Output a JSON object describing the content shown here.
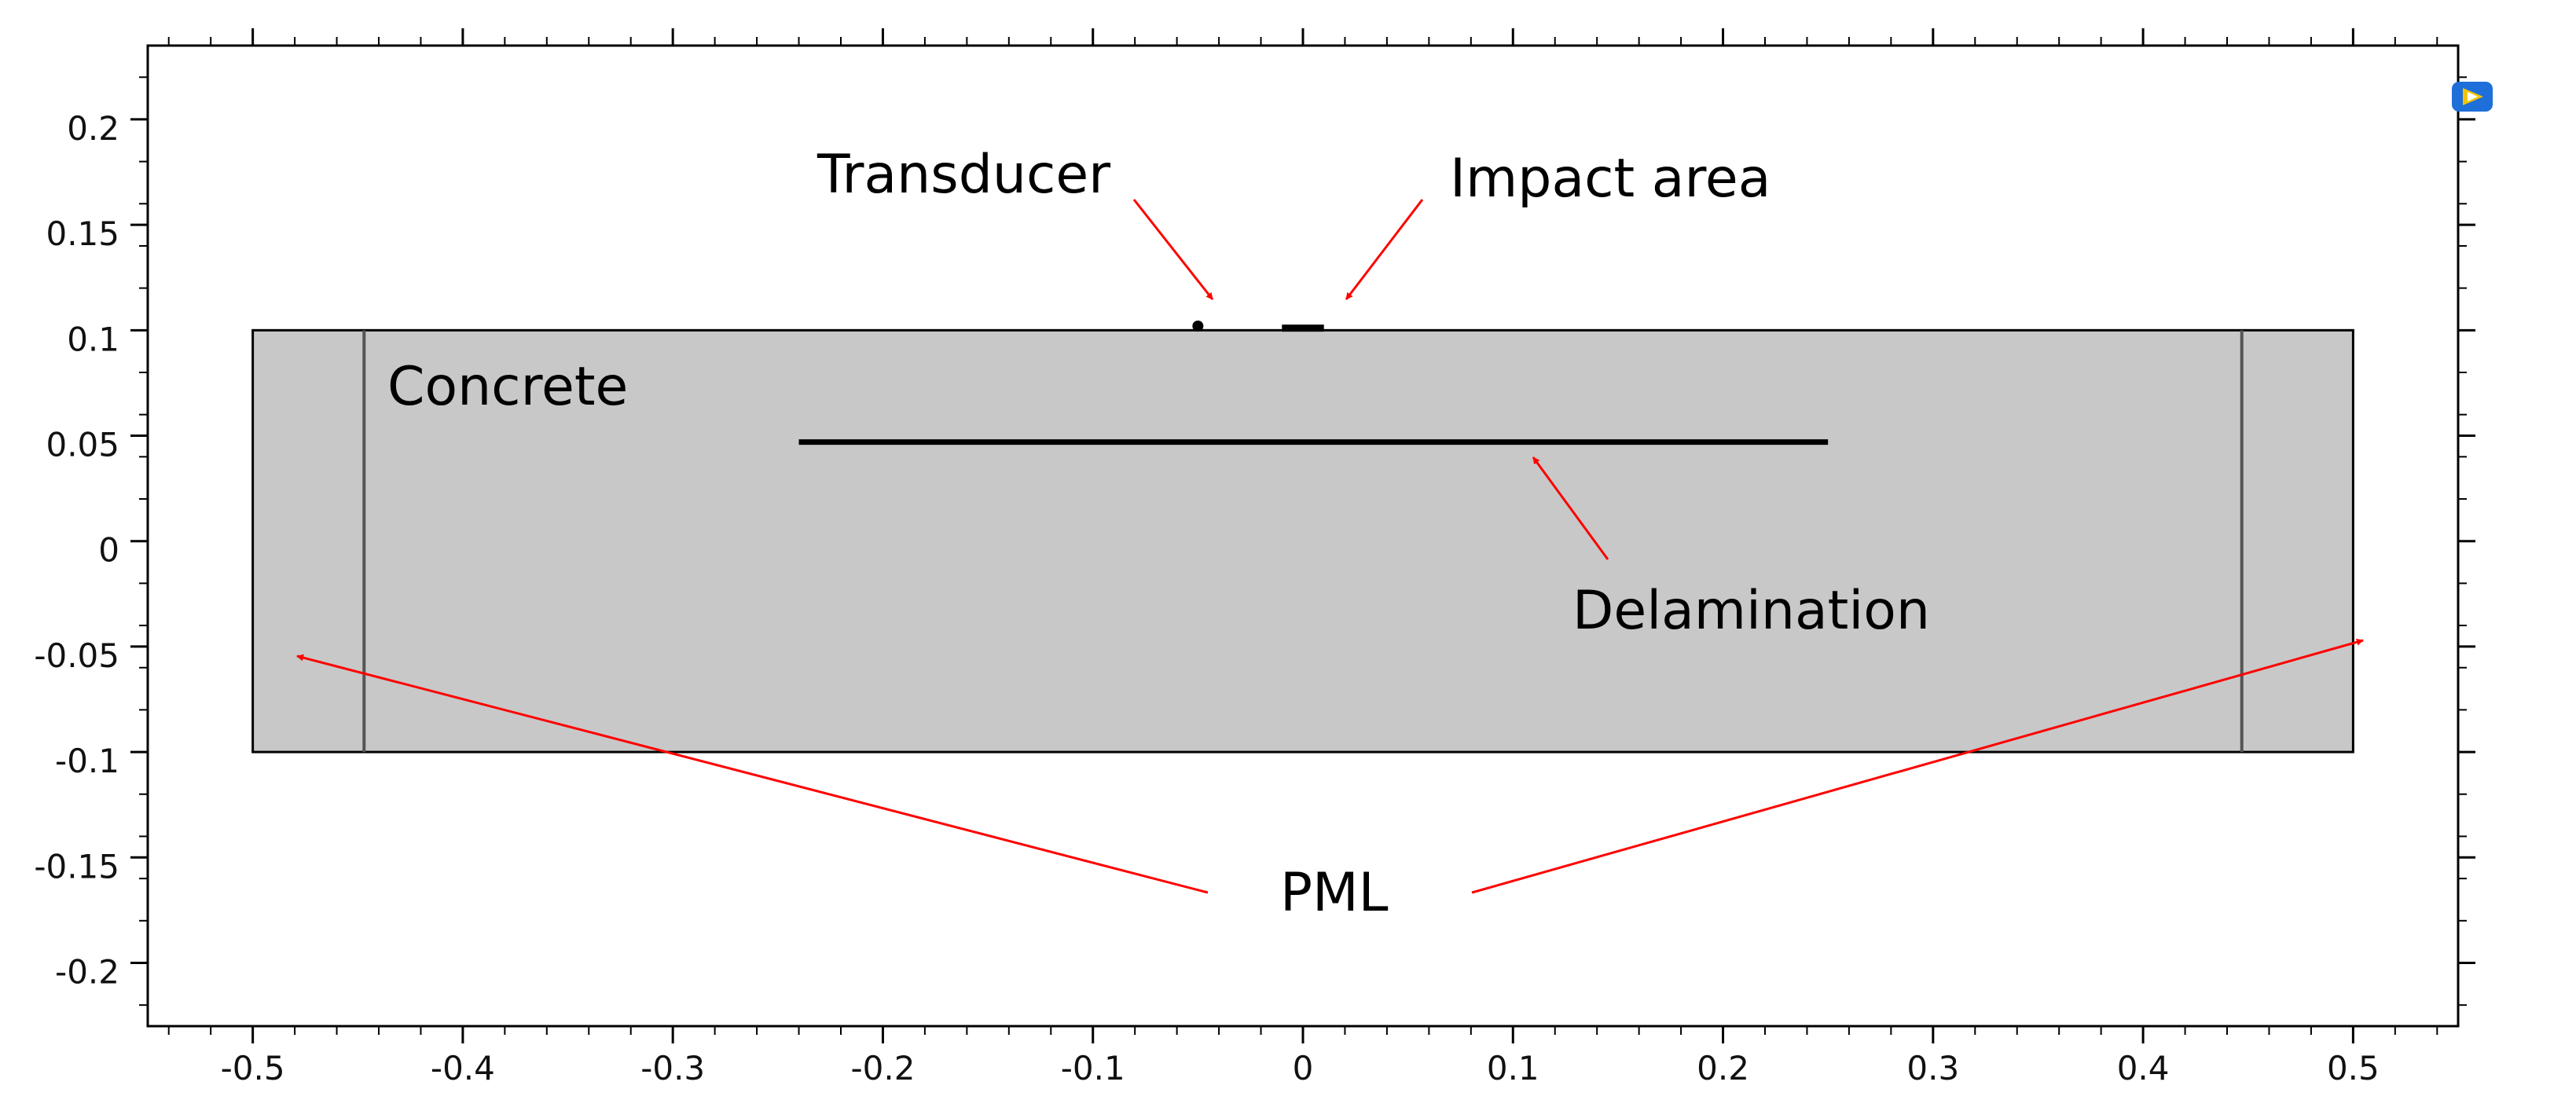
{
  "view": {
    "x_range": [
      -0.55,
      0.55
    ],
    "y_range": [
      -0.23,
      0.235
    ],
    "x_ticks": [
      -0.5,
      -0.4,
      -0.3,
      -0.2,
      -0.1,
      0,
      0.1,
      0.2,
      0.3,
      0.4,
      0.5
    ],
    "x_tick_labels": [
      "-0.5",
      "-0.4",
      "-0.3",
      "-0.2",
      "-0.1",
      "0",
      "0.1",
      "0.2",
      "0.3",
      "0.4",
      "0.5"
    ],
    "y_ticks": [
      0.2,
      0.15,
      0.1,
      0.05,
      0,
      -0.05,
      -0.1,
      -0.15,
      -0.2
    ],
    "y_tick_labels": [
      "0.2",
      "0.15",
      "0.1",
      "0.05",
      "0",
      "-0.05",
      "-0.1",
      "-0.15",
      "-0.2"
    ],
    "minor_tick_step": 0.02
  },
  "geometry": {
    "concrete_block": {
      "x": [
        -0.5,
        0.5
      ],
      "y": [
        -0.1,
        0.1
      ]
    },
    "pml_boundaries_x": [
      -0.447,
      0.447
    ],
    "delamination": {
      "x": [
        -0.24,
        0.25
      ],
      "y": 0.047
    },
    "transducer_point": {
      "x": -0.05,
      "y": 0.102
    },
    "impact_area": {
      "x": [
        -0.01,
        0.01
      ],
      "y": 0.101
    }
  },
  "annotations": {
    "transducer": "Transducer",
    "impact_area": "Impact area",
    "concrete": "Concrete",
    "delamination": "Delamination",
    "pml": "PML"
  },
  "colors": {
    "concrete_fill": "#c8c8c8",
    "arrow": "#ff0000",
    "outline": "#000000",
    "logo_blue": "#1e6fd9",
    "logo_yellow": "#f5c400"
  },
  "logo_icon": "comsol-logo-icon"
}
